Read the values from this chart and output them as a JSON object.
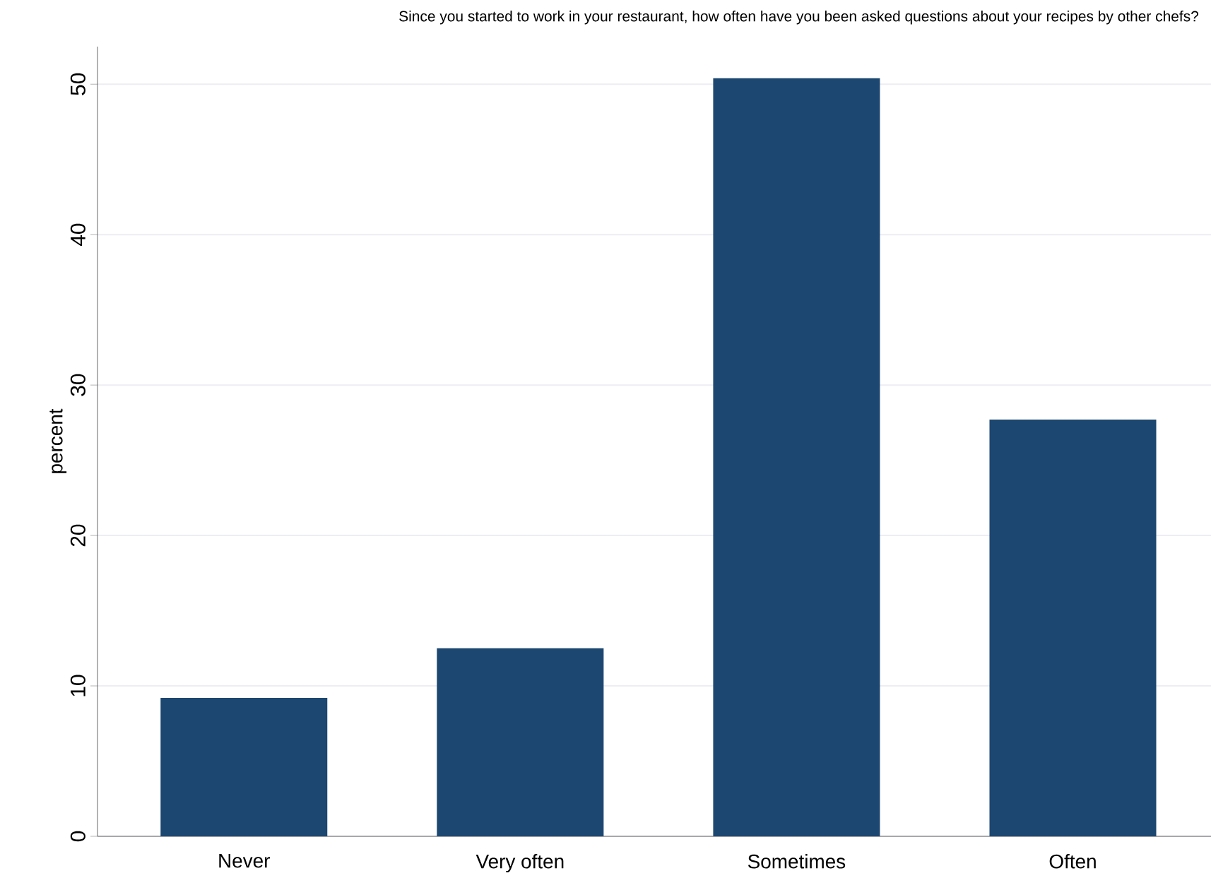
{
  "chart_data": {
    "type": "bar",
    "title": "Since you started to work in your restaurant, how often have you been asked questions about your recipes by other chefs?",
    "ylabel": "percent",
    "categories": [
      "Never",
      "Very often",
      "Sometimes",
      "Often"
    ],
    "values": [
      9.2,
      12.5,
      50.4,
      27.7
    ],
    "color": "#1c4770",
    "ylim": [
      0,
      52.5
    ],
    "yticks": [
      0,
      10,
      20,
      30,
      40,
      50
    ],
    "grid": "y"
  }
}
